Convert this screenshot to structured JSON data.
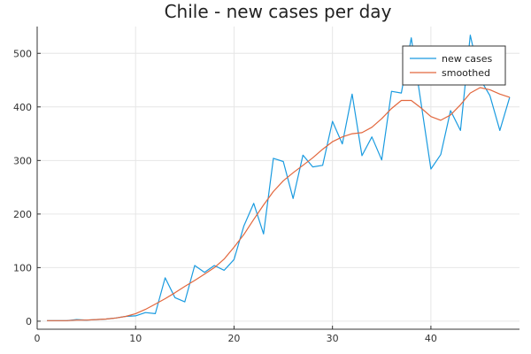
{
  "chart_data": {
    "type": "line",
    "title": "Chile - new cases per day",
    "xlabel": "",
    "ylabel": "",
    "xlim": [
      0,
      49
    ],
    "ylim": [
      -15,
      550
    ],
    "xticks": [
      0,
      10,
      20,
      30,
      40
    ],
    "yticks": [
      0,
      100,
      200,
      300,
      400,
      500
    ],
    "grid": true,
    "legend": "top-right",
    "series": [
      {
        "name": "new cases",
        "color": "#1a9be0",
        "x": [
          1,
          2,
          3,
          4,
          5,
          6,
          7,
          8,
          9,
          10,
          11,
          12,
          13,
          14,
          15,
          16,
          17,
          18,
          19,
          20,
          21,
          22,
          23,
          24,
          25,
          26,
          27,
          28,
          29,
          30,
          31,
          32,
          33,
          34,
          35,
          36,
          37,
          38,
          39,
          40,
          41,
          42,
          43,
          44,
          45,
          46,
          47,
          48
        ],
        "values": [
          1,
          1,
          1,
          3,
          2,
          3,
          4,
          6,
          9,
          10,
          16,
          14,
          81,
          44,
          36,
          104,
          91,
          104,
          95,
          115,
          178,
          220,
          163,
          304,
          298,
          229,
          310,
          288,
          291,
          373,
          331,
          424,
          309,
          344,
          301,
          429,
          426,
          529,
          407,
          284,
          311,
          393,
          356,
          534,
          452,
          421,
          356,
          418
        ]
      },
      {
        "name": "smoothed",
        "color": "#e2673d",
        "x": [
          1,
          2,
          3,
          4,
          5,
          6,
          7,
          8,
          9,
          10,
          11,
          12,
          13,
          14,
          15,
          16,
          17,
          18,
          19,
          20,
          21,
          22,
          23,
          24,
          25,
          26,
          27,
          28,
          29,
          30,
          31,
          32,
          33,
          34,
          35,
          36,
          37,
          38,
          39,
          40,
          41,
          42,
          43,
          44,
          45,
          46,
          47,
          48
        ],
        "values": [
          1,
          1,
          1,
          2,
          2,
          3,
          4,
          6,
          9,
          14,
          22,
          32,
          42,
          53,
          65,
          76,
          88,
          100,
          116,
          138,
          162,
          190,
          217,
          242,
          262,
          277,
          291,
          305,
          321,
          335,
          344,
          350,
          352,
          362,
          378,
          397,
          412,
          412,
          398,
          382,
          375,
          385,
          404,
          426,
          436,
          432,
          424,
          418
        ]
      }
    ]
  }
}
